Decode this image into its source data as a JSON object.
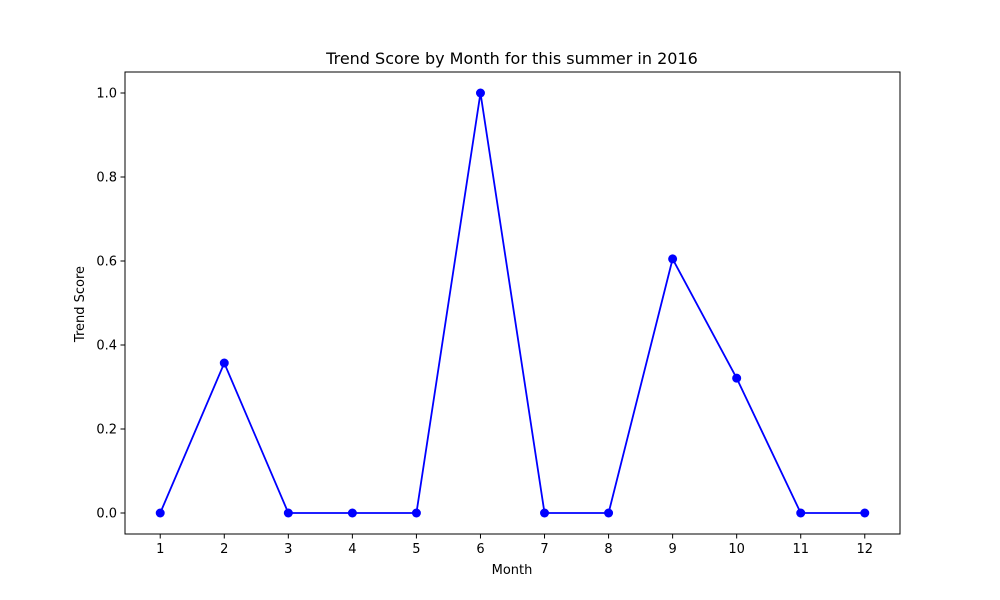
{
  "chart_data": {
    "type": "line",
    "title": "Trend Score by Month for this summer in 2016",
    "xlabel": "Month",
    "ylabel": "Trend Score",
    "x": [
      1,
      2,
      3,
      4,
      5,
      6,
      7,
      8,
      9,
      10,
      11,
      12
    ],
    "xticks": [
      "1",
      "2",
      "3",
      "4",
      "5",
      "6",
      "7",
      "8",
      "9",
      "10",
      "11",
      "12"
    ],
    "yticks": [
      "0.0",
      "0.2",
      "0.4",
      "0.6",
      "0.8",
      "1.0"
    ],
    "ytick_values": [
      0.0,
      0.2,
      0.4,
      0.6,
      0.8,
      1.0
    ],
    "xlim": [
      0.45,
      12.55
    ],
    "ylim": [
      -0.05,
      1.05
    ],
    "grid": false,
    "legend": "none",
    "series": [
      {
        "color": "#0000ff",
        "marker": "circle",
        "values": [
          0.0,
          0.357,
          0.0,
          0.0,
          0.0,
          1.0,
          0.0,
          0.0,
          0.605,
          0.321,
          0.0,
          0.0
        ]
      }
    ]
  }
}
